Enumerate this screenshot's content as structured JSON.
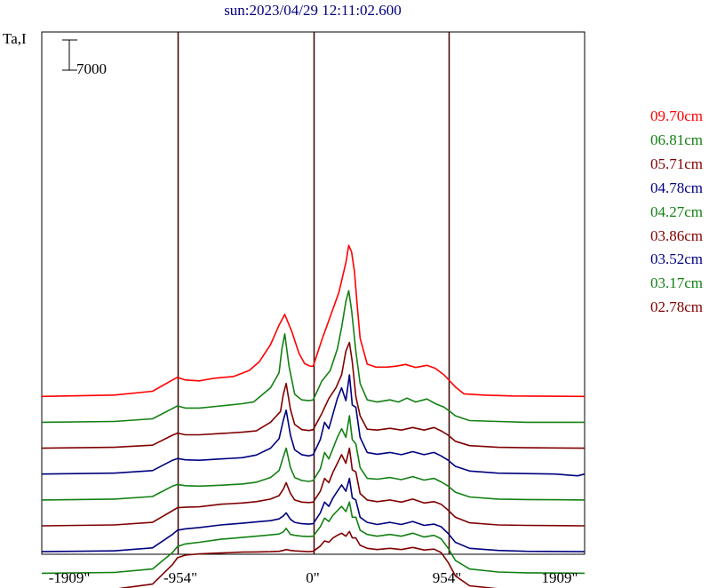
{
  "page": {
    "title": "sun:2023/04/29 12:11:02.600"
  },
  "chart_data": {
    "type": "line",
    "title": "sun:2023/04/29 12:11:02.600",
    "ylabel": "Ta,I",
    "scale_bar_label": "7000",
    "scale_bar_value": 7000,
    "x_ticks": [
      "-1909\"",
      "-954\"",
      "0\"",
      "954\"",
      "1909\""
    ],
    "x_tick_values": [
      -1909,
      -954,
      0,
      954,
      1909
    ],
    "xlim": [
      -1909,
      1909
    ],
    "vertical_lines": [
      -954,
      0,
      954
    ],
    "legend_position": "right",
    "series": [
      {
        "name": "09.70cm",
        "color": "#ff0000",
        "offset": 44000,
        "x": [
          -1909,
          -1400,
          -1130,
          -990,
          -954,
          -900,
          -800,
          -700,
          -560,
          -450,
          -380,
          -300,
          -240,
          -200,
          -150,
          -100,
          -60,
          -20,
          0,
          60,
          120,
          180,
          230,
          250,
          270,
          290,
          310,
          330,
          380,
          440,
          520,
          580,
          650,
          720,
          800,
          860,
          920,
          954,
          1000,
          1060,
          1200,
          1400,
          1909
        ],
        "values": [
          0,
          300,
          1200,
          3800,
          4400,
          3800,
          3600,
          4200,
          4600,
          6000,
          8000,
          12000,
          16500,
          19000,
          15000,
          10000,
          7600,
          7000,
          7000,
          13000,
          18500,
          24000,
          31000,
          35000,
          33500,
          29000,
          21000,
          13500,
          7500,
          6800,
          6800,
          7000,
          7400,
          6700,
          7200,
          6500,
          5000,
          3800,
          2200,
          600,
          300,
          100,
          0
        ]
      },
      {
        "name": "06.81cm",
        "color": "#138013",
        "offset": 38000,
        "x": [
          -1909,
          -1400,
          -1130,
          -990,
          -954,
          -900,
          -800,
          -650,
          -500,
          -420,
          -300,
          -240,
          -220,
          -200,
          -170,
          -130,
          -80,
          -30,
          0,
          60,
          120,
          170,
          200,
          230,
          250,
          270,
          300,
          330,
          380,
          450,
          540,
          600,
          660,
          720,
          800,
          860,
          920,
          954,
          1000,
          1100,
          1300,
          1500,
          1909
        ],
        "values": [
          0,
          200,
          800,
          3200,
          3800,
          3300,
          3300,
          3800,
          4300,
          4700,
          8000,
          11500,
          17000,
          20500,
          13000,
          6500,
          5200,
          5000,
          5200,
          9500,
          12000,
          17000,
          22000,
          28000,
          30500,
          26000,
          16500,
          9000,
          5200,
          4700,
          5200,
          4700,
          5600,
          4700,
          5400,
          4300,
          3500,
          2700,
          1500,
          400,
          200,
          0,
          0
        ]
      },
      {
        "name": "05.71cm",
        "color": "#7f0000",
        "offset": 32000,
        "x": [
          -1909,
          -1400,
          -1130,
          -990,
          -954,
          -900,
          -800,
          -650,
          -500,
          -400,
          -300,
          -230,
          -210,
          -190,
          -160,
          -130,
          -80,
          -30,
          0,
          60,
          110,
          160,
          200,
          230,
          255,
          275,
          300,
          330,
          380,
          450,
          540,
          620,
          700,
          780,
          850,
          900,
          950,
          1000,
          1100,
          1300,
          1500,
          1909
        ],
        "values": [
          0,
          200,
          700,
          3000,
          3500,
          3100,
          3100,
          3400,
          3700,
          4000,
          6000,
          8500,
          12500,
          15000,
          9000,
          5500,
          4300,
          4100,
          4300,
          8000,
          11500,
          14000,
          17000,
          22500,
          24500,
          20000,
          12000,
          7500,
          4400,
          4200,
          4600,
          4200,
          4800,
          4200,
          4800,
          4000,
          3000,
          1600,
          600,
          200,
          100,
          0
        ]
      },
      {
        "name": "04.78cm",
        "color": "#00007f",
        "offset": 26000,
        "x": [
          -1909,
          -1400,
          -1130,
          -990,
          -954,
          -900,
          -800,
          -650,
          -500,
          -400,
          -300,
          -240,
          -210,
          -190,
          -160,
          -130,
          -80,
          -30,
          0,
          50,
          80,
          110,
          140,
          170,
          200,
          230,
          255,
          275,
          300,
          330,
          380,
          450,
          540,
          620,
          700,
          780,
          850,
          900,
          950,
          1000,
          1100,
          1300,
          1500,
          1700,
          1860,
          1909
        ],
        "values": [
          0,
          200,
          800,
          3200,
          3600,
          3300,
          3200,
          3500,
          3800,
          4400,
          6000,
          8200,
          12500,
          14800,
          9000,
          5600,
          4500,
          4200,
          4500,
          8000,
          12000,
          10500,
          14000,
          17500,
          20000,
          17000,
          23000,
          16000,
          15500,
          8500,
          5000,
          4600,
          5000,
          4500,
          5200,
          4500,
          5000,
          4200,
          3200,
          1800,
          700,
          200,
          100,
          0,
          -400,
          0
        ]
      },
      {
        "name": "04.27cm",
        "color": "#138013",
        "offset": 20000,
        "x": [
          -1909,
          -1400,
          -1130,
          -990,
          -954,
          -900,
          -800,
          -650,
          -500,
          -400,
          -300,
          -240,
          -210,
          -190,
          -160,
          -130,
          -80,
          -30,
          0,
          50,
          80,
          110,
          140,
          170,
          200,
          230,
          255,
          275,
          300,
          330,
          380,
          450,
          540,
          620,
          700,
          780,
          850,
          900,
          950,
          1000,
          1100,
          1300,
          1500,
          1909
        ],
        "values": [
          0,
          200,
          800,
          3200,
          3600,
          3300,
          3200,
          3400,
          3700,
          4100,
          5200,
          6800,
          10000,
          12000,
          7500,
          5200,
          4500,
          4300,
          4500,
          7200,
          11000,
          9500,
          12000,
          14500,
          16500,
          14500,
          19500,
          14000,
          13000,
          7500,
          5000,
          4800,
          5200,
          4700,
          5400,
          4600,
          5000,
          4200,
          3200,
          1800,
          700,
          200,
          100,
          0
        ]
      },
      {
        "name": "03.86cm",
        "color": "#7f0000",
        "offset": 14000,
        "x": [
          -1909,
          -1400,
          -1130,
          -990,
          -954,
          -900,
          -800,
          -650,
          -500,
          -400,
          -300,
          -240,
          -210,
          -190,
          -160,
          -130,
          -80,
          -30,
          0,
          50,
          80,
          110,
          140,
          170,
          200,
          230,
          255,
          275,
          300,
          330,
          380,
          450,
          540,
          620,
          700,
          780,
          850,
          900,
          950,
          1000,
          1100,
          1300,
          1500,
          1909
        ],
        "values": [
          0,
          200,
          800,
          3500,
          4200,
          4300,
          4400,
          5000,
          5300,
          5600,
          6200,
          7000,
          8500,
          10000,
          7500,
          6000,
          5500,
          5400,
          5500,
          8000,
          11000,
          10000,
          12500,
          14500,
          16500,
          14500,
          18000,
          13000,
          12500,
          7500,
          6000,
          5600,
          6000,
          5500,
          6200,
          5300,
          5600,
          5000,
          3600,
          2000,
          700,
          200,
          100,
          0
        ]
      },
      {
        "name": "03.52cm",
        "color": "#00007f",
        "offset": 8000,
        "x": [
          -1909,
          -1400,
          -1130,
          -990,
          -954,
          -900,
          -800,
          -650,
          -500,
          -400,
          -300,
          -240,
          -210,
          -190,
          -160,
          -130,
          -80,
          -30,
          0,
          50,
          80,
          110,
          140,
          170,
          200,
          230,
          255,
          275,
          300,
          330,
          380,
          450,
          540,
          620,
          700,
          780,
          850,
          900,
          950,
          1000,
          1100,
          1300,
          1500,
          1909
        ],
        "values": [
          0,
          200,
          900,
          4000,
          5000,
          5300,
          5600,
          6200,
          6600,
          6900,
          7200,
          7600,
          8300,
          9000,
          7500,
          6800,
          6500,
          6400,
          6500,
          9000,
          11500,
          10500,
          12500,
          14000,
          15500,
          14000,
          17000,
          12500,
          12000,
          8000,
          6800,
          6300,
          6800,
          6300,
          7000,
          6100,
          6400,
          5800,
          4200,
          2200,
          800,
          300,
          100,
          0
        ]
      },
      {
        "name": "03.17cm",
        "color": "#138013",
        "offset": 3000,
        "x": [
          -1909,
          -1400,
          -1130,
          -990,
          -954,
          -900,
          -800,
          -650,
          -500,
          -400,
          -300,
          -240,
          -210,
          -190,
          -160,
          -130,
          -80,
          -30,
          0,
          50,
          80,
          110,
          140,
          170,
          200,
          230,
          255,
          275,
          300,
          330,
          380,
          450,
          540,
          620,
          700,
          780,
          850,
          900,
          950,
          1000,
          1100,
          1300,
          1500,
          1909
        ],
        "values": [
          0,
          200,
          1000,
          4800,
          6200,
          6800,
          7200,
          7900,
          8300,
          8600,
          8900,
          9100,
          9600,
          10400,
          9000,
          8800,
          8600,
          8500,
          8600,
          10800,
          12800,
          12000,
          13500,
          14500,
          15500,
          14300,
          16500,
          13000,
          13000,
          10000,
          9000,
          8600,
          9000,
          8600,
          9300,
          8400,
          8800,
          8000,
          5800,
          3000,
          1000,
          300,
          100,
          0
        ]
      },
      {
        "name": "02.78cm",
        "color": "#7f0000",
        "offset": -1000,
        "x": [
          -1909,
          -1400,
          -1130,
          -990,
          -954,
          -900,
          -800,
          -650,
          -500,
          -400,
          -300,
          -240,
          -210,
          -190,
          -160,
          -130,
          -80,
          -30,
          0,
          50,
          80,
          110,
          140,
          170,
          200,
          230,
          255,
          275,
          300,
          330,
          380,
          450,
          540,
          620,
          700,
          780,
          850,
          900,
          950,
          1000,
          1100,
          1300,
          1500,
          1909
        ],
        "values": [
          0,
          300,
          1500,
          6000,
          7600,
          8200,
          8500,
          8700,
          8900,
          8950,
          9000,
          9100,
          9300,
          9500,
          9300,
          9200,
          9100,
          9000,
          9100,
          10300,
          11500,
          11200,
          12200,
          12800,
          13300,
          12600,
          13700,
          12200,
          12200,
          10500,
          9800,
          9500,
          9800,
          9500,
          10000,
          9400,
          9600,
          8800,
          6500,
          3400,
          1100,
          400,
          100,
          0
        ]
      }
    ]
  }
}
